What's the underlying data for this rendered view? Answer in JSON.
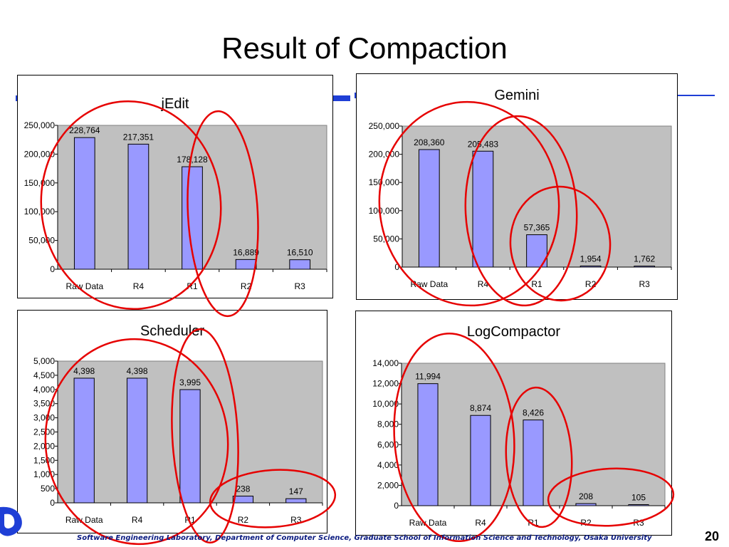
{
  "slide": {
    "title": "Result of Compaction",
    "footer": "Software Engineering Laboratory, Department of Computer Science, Graduate School of Information Science and Technology, Osaka University",
    "page_number": "20"
  },
  "colors": {
    "bar": "#9999ff",
    "plot_bg": "#c0c0c0",
    "highlight": "#e60000",
    "accent_line": "#1f3fd6"
  },
  "chart_data": [
    {
      "type": "bar",
      "title": "jEdit",
      "categories": [
        "Raw Data",
        "R4",
        "R1",
        "R2",
        "R3"
      ],
      "values": [
        228764,
        217351,
        178128,
        16889,
        16510
      ],
      "value_labels": [
        "228,764",
        "217,351",
        "178,128",
        "16,889",
        "16,510"
      ],
      "ylim": [
        0,
        250000
      ],
      "yticks": [
        "0",
        "50,000",
        "100,000",
        "150,000",
        "200,000",
        "250,000"
      ]
    },
    {
      "type": "bar",
      "title": "Gemini",
      "categories": [
        "Raw Data",
        "R4",
        "R1",
        "R2",
        "R3"
      ],
      "values": [
        208360,
        205483,
        57365,
        1954,
        1762
      ],
      "value_labels": [
        "208,360",
        "205,483",
        "57,365",
        "1,954",
        "1,762"
      ],
      "ylim": [
        0,
        250000
      ],
      "yticks": [
        "0",
        "50,000",
        "100,000",
        "150,000",
        "200,000",
        "250,000"
      ]
    },
    {
      "type": "bar",
      "title": "Scheduler",
      "categories": [
        "Raw Data",
        "R4",
        "R1",
        "R2",
        "R3"
      ],
      "values": [
        4398,
        4398,
        3995,
        238,
        147
      ],
      "value_labels": [
        "4,398",
        "4,398",
        "3,995",
        "238",
        "147"
      ],
      "ylim": [
        0,
        5000
      ],
      "yticks": [
        "0",
        "500",
        "1,000",
        "1,500",
        "2,000",
        "2,500",
        "3,000",
        "3,500",
        "4,000",
        "4,500",
        "5,000"
      ]
    },
    {
      "type": "bar",
      "title": "LogCompactor",
      "categories": [
        "Raw Data",
        "R4",
        "R1",
        "R2",
        "R3"
      ],
      "values": [
        11994,
        8874,
        8426,
        208,
        105
      ],
      "value_labels": [
        "11,994",
        "8,874",
        "8,426",
        "208",
        "105"
      ],
      "ylim": [
        0,
        14000
      ],
      "yticks": [
        "0",
        "2,000",
        "4,000",
        "6,000",
        "8,000",
        "10,000",
        "12,000",
        "14,000"
      ]
    }
  ]
}
